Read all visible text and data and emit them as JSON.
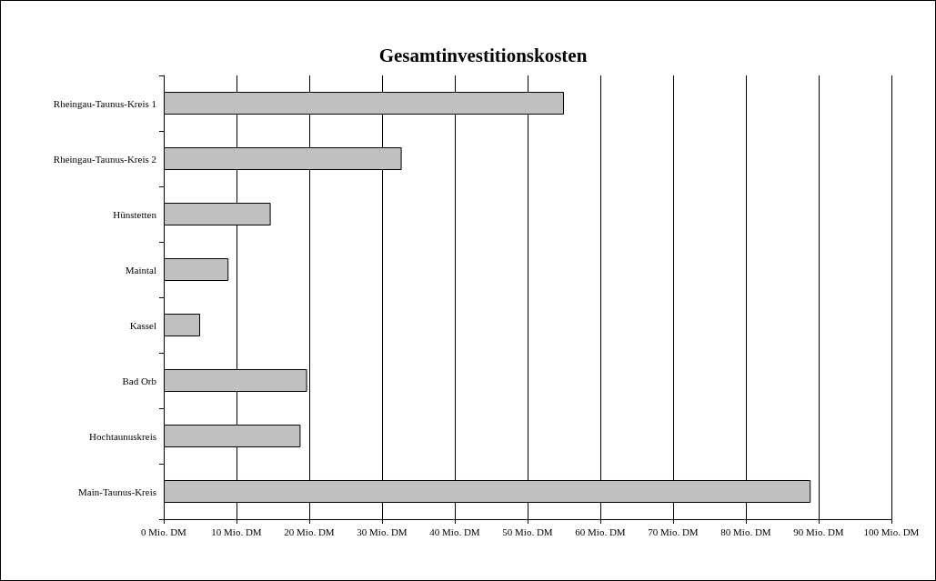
{
  "chart_data": {
    "type": "bar",
    "title": "Gesamtinvestitionskosten",
    "orientation": "horizontal",
    "categories": [
      "Rheingau-Taunus-Kreis 1",
      "Rheingau-Taunus-Kreis 2",
      "Hünstetten",
      "Maintal",
      "Kassel",
      "Bad Orb",
      "Hochtaunuskreis",
      "Main-Taunus-Kreis"
    ],
    "values": [
      55,
      32.7,
      14.7,
      8.9,
      5,
      19.7,
      18.8,
      88.9
    ],
    "color": "#c0c0c0",
    "xlim": [
      0,
      100
    ],
    "xticks": [
      {
        "value": 0,
        "label": "0 Mio. DM"
      },
      {
        "value": 10,
        "label": "10 Mio. DM"
      },
      {
        "value": 20,
        "label": "20 Mio. DM"
      },
      {
        "value": 30,
        "label": "30 Mio. DM"
      },
      {
        "value": 40,
        "label": "40 Mio. DM"
      },
      {
        "value": 50,
        "label": "50 Mio. DM"
      },
      {
        "value": 60,
        "label": "60 Mio. DM"
      },
      {
        "value": 70,
        "label": "70 Mio. DM"
      },
      {
        "value": 80,
        "label": "80 Mio. DM"
      },
      {
        "value": 90,
        "label": "90 Mio. DM"
      },
      {
        "value": 100,
        "label": "100 Mio. DM"
      }
    ],
    "grid": "x"
  }
}
